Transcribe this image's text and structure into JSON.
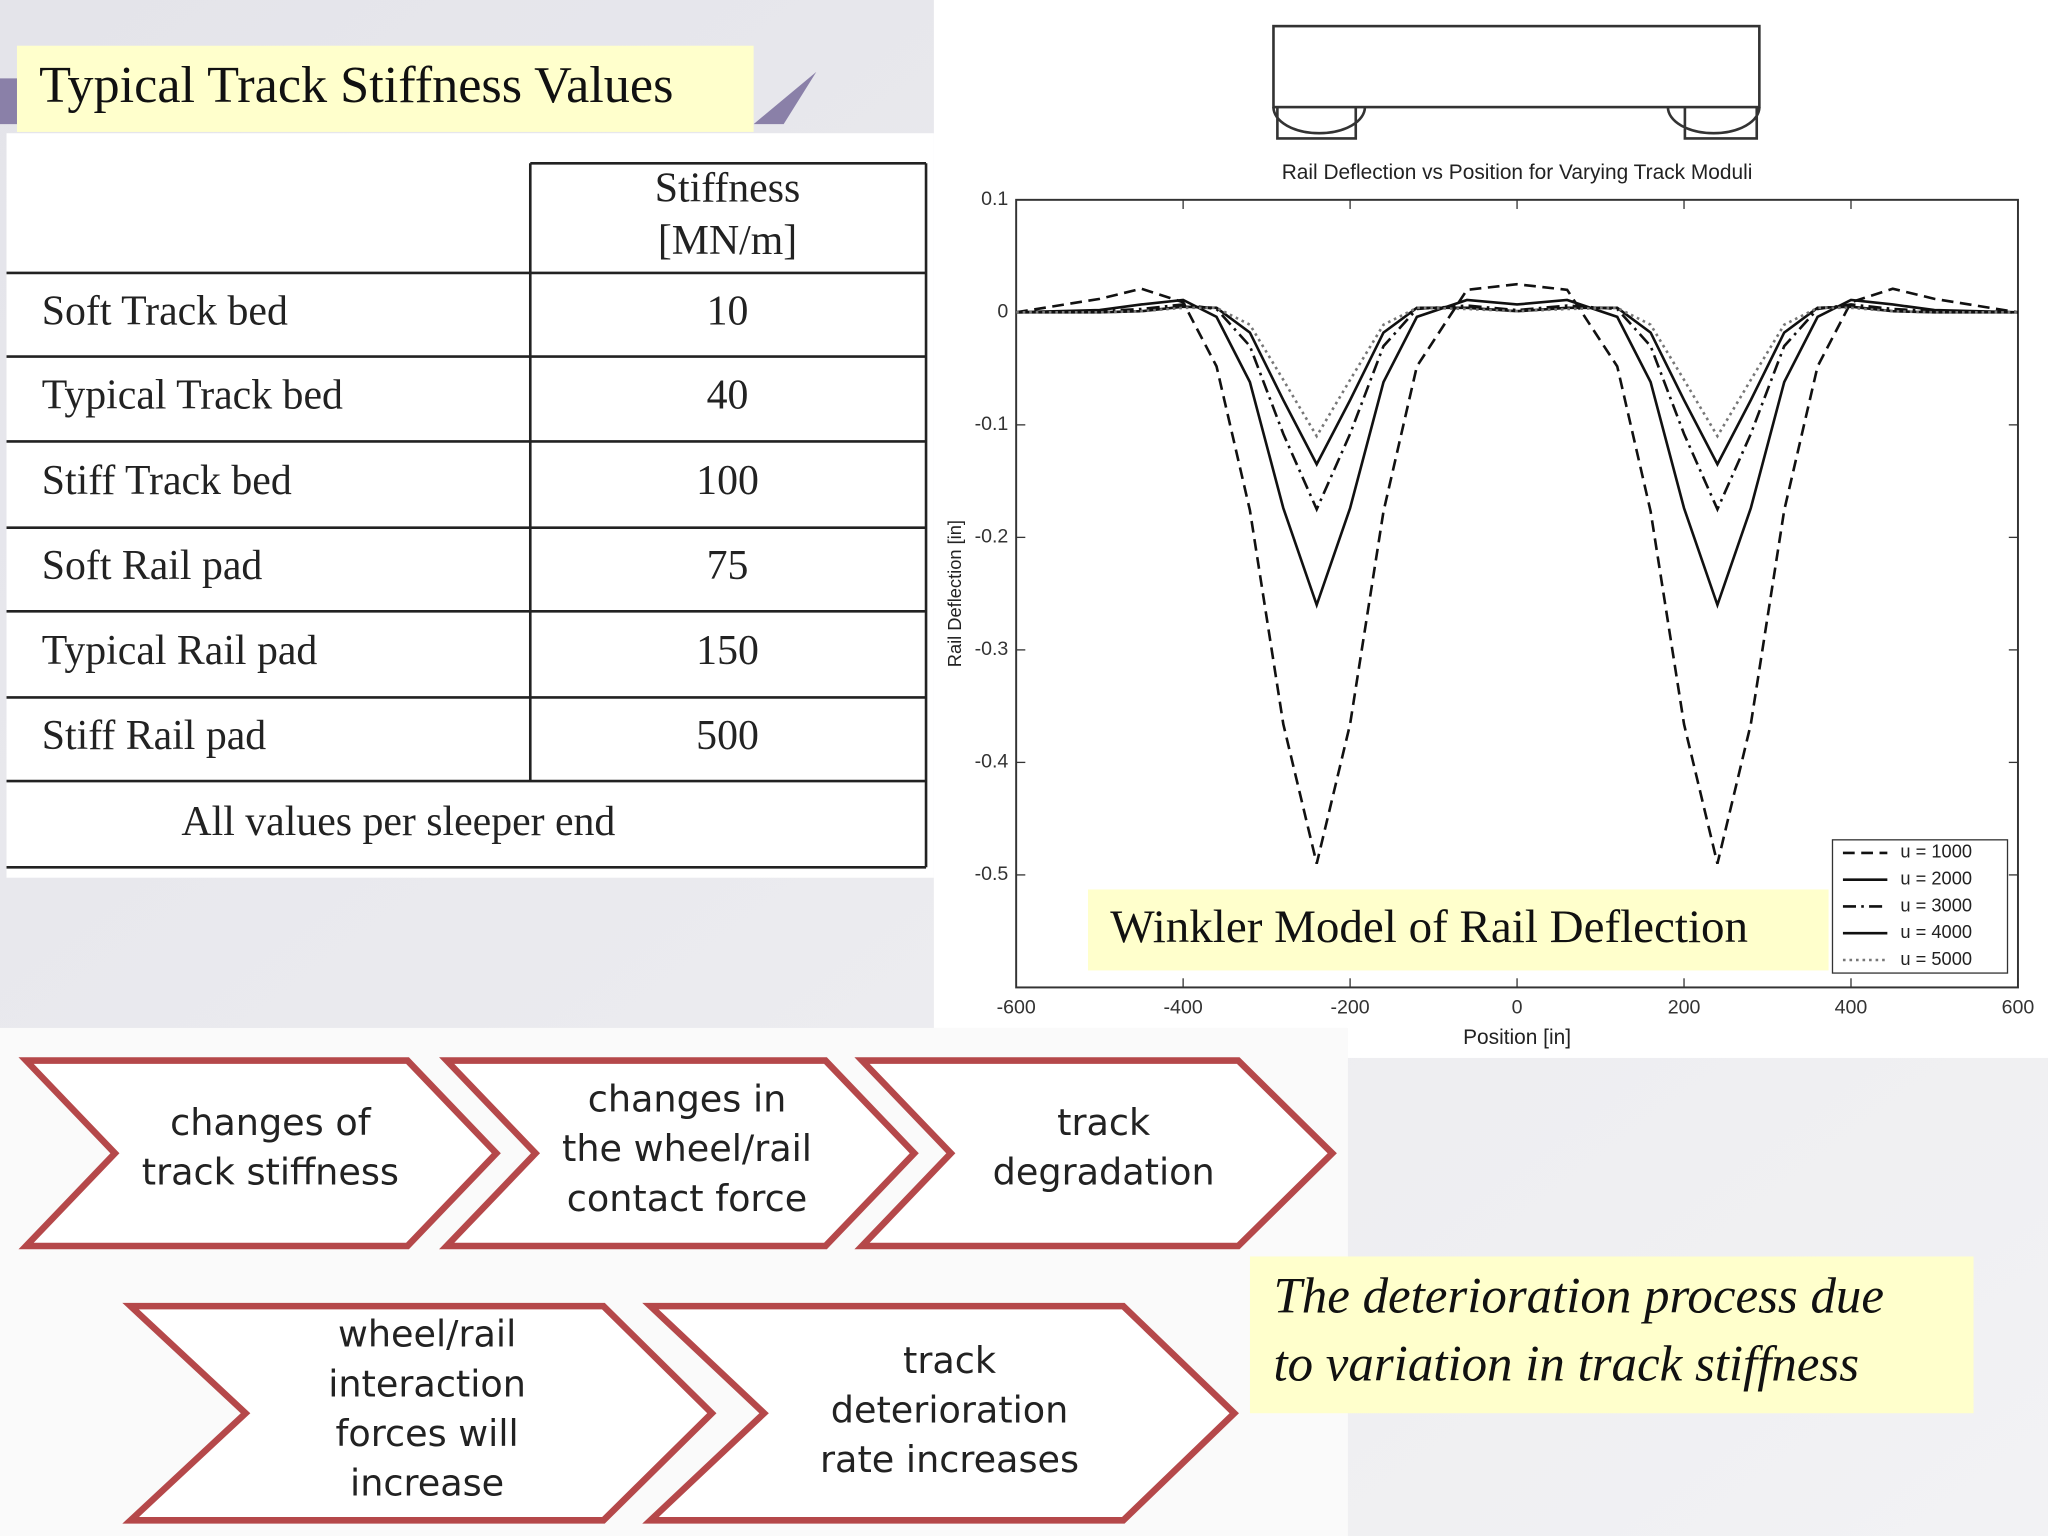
{
  "title": "Typical Track Stiffness Values",
  "table": {
    "header": [
      "Stiffness",
      "[MN/m]"
    ],
    "rows": [
      [
        "Soft Track bed",
        10
      ],
      [
        "Typical Track bed",
        40
      ],
      [
        "Stiff Track bed",
        100
      ],
      [
        "Soft Rail pad",
        75
      ],
      [
        "Typical Rail pad",
        150
      ],
      [
        "Stiff Rail pad",
        500
      ]
    ],
    "footer": "All values per sleeper end"
  },
  "chart_data": {
    "type": "line",
    "title": "Rail Deflection vs Position for Varying Track Moduli",
    "xlabel": "Position [in]",
    "ylabel": "Rail Deflection [in]",
    "annotation": "Winkler Model of Rail Deflection",
    "x": [
      -600,
      -500,
      -450,
      -400,
      -360,
      -320,
      -280,
      -240,
      -200,
      -160,
      -120,
      -60,
      0,
      60,
      120,
      160,
      200,
      240,
      280,
      320,
      360,
      400,
      450,
      500,
      600
    ],
    "series": [
      {
        "name": "u = 1000",
        "color": "#111111",
        "style": "dashed",
        "values": [
          0,
          0.012,
          0.021,
          0.009,
          -0.048,
          -0.176,
          -0.366,
          -0.49,
          -0.366,
          -0.177,
          -0.048,
          0.02,
          0.025,
          0.02,
          -0.048,
          -0.177,
          -0.366,
          -0.49,
          -0.366,
          -0.176,
          -0.048,
          0.009,
          0.021,
          0.012,
          0
        ]
      },
      {
        "name": "u = 2000",
        "color": "#111111",
        "style": "solid",
        "values": [
          0,
          0.002,
          0.007,
          0.011,
          -0.004,
          -0.062,
          -0.174,
          -0.26,
          -0.174,
          -0.062,
          -0.004,
          0.011,
          0.007,
          0.011,
          -0.004,
          -0.062,
          -0.174,
          -0.26,
          -0.174,
          -0.062,
          -0.004,
          0.011,
          0.007,
          0.002,
          0
        ]
      },
      {
        "name": "u = 3000",
        "color": "#111111",
        "style": "dashdot",
        "values": [
          0,
          0.001,
          0.003,
          0.007,
          0.003,
          -0.03,
          -0.108,
          -0.175,
          -0.108,
          -0.03,
          0.003,
          0.006,
          0.002,
          0.006,
          0.003,
          -0.03,
          -0.108,
          -0.175,
          -0.108,
          -0.03,
          0.003,
          0.007,
          0.003,
          0.001,
          0
        ]
      },
      {
        "name": "u = 4000",
        "color": "#111111",
        "style": "solid",
        "values": [
          0,
          0,
          0.001,
          0.005,
          0.004,
          -0.018,
          -0.078,
          -0.135,
          -0.078,
          -0.018,
          0.004,
          0.004,
          0.001,
          0.004,
          0.004,
          -0.018,
          -0.078,
          -0.135,
          -0.078,
          -0.018,
          0.004,
          0.005,
          0.001,
          0,
          0
        ]
      },
      {
        "name": "u = 5000",
        "color": "#777777",
        "style": "dotted",
        "values": [
          0,
          0,
          0.001,
          0.004,
          0.004,
          -0.011,
          -0.06,
          -0.11,
          -0.06,
          -0.011,
          0.004,
          0.003,
          0.001,
          0.003,
          0.004,
          -0.011,
          -0.06,
          -0.11,
          -0.06,
          -0.011,
          0.004,
          0.004,
          0.001,
          0,
          0
        ]
      }
    ],
    "xlim": [
      -600,
      600
    ],
    "xticks": [
      -600,
      -400,
      -200,
      0,
      200,
      400,
      600
    ],
    "ylim": [
      -0.6,
      0.1
    ],
    "yticks": [
      -0.5,
      -0.4,
      -0.3,
      -0.2,
      -0.1,
      0,
      0.1
    ],
    "grid": false,
    "legend": "lower right"
  },
  "flow": {
    "steps": [
      [
        "changes of",
        "track stiffness"
      ],
      [
        "changes in",
        "the wheel/rail",
        "contact force"
      ],
      [
        "track",
        "degradation"
      ],
      [
        "wheel/rail",
        "interaction",
        "forces will",
        "increase"
      ],
      [
        "track",
        "deterioration",
        "rate increases"
      ]
    ]
  },
  "caption": [
    "The deterioration process due",
    "to variation in track stiffness"
  ]
}
